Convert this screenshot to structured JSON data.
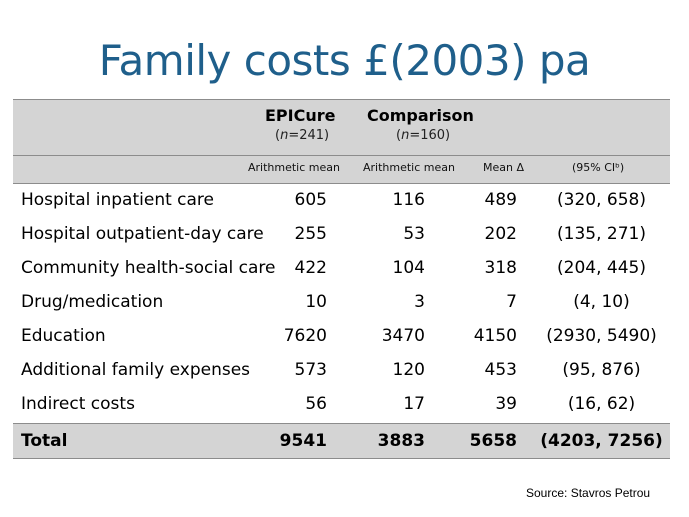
{
  "title": "Family costs £(2003) pa",
  "columns": [
    {
      "name": "EPICure",
      "n_prefix": "(",
      "n_var": "n",
      "n_value": "=241)",
      "measure": "Arithmetic mean"
    },
    {
      "name": "Comparison",
      "n_prefix": "(",
      "n_var": "n",
      "n_value": "=160)",
      "measure": "Arithmetic mean"
    },
    {
      "measure": "Mean Δ"
    },
    {
      "measure": "(95% CIᵇ)"
    }
  ],
  "rows": [
    {
      "label": "Hospital inpatient care",
      "epicure": "605",
      "comparison": "116",
      "mean_delta": "489",
      "ci": "(320, 658)"
    },
    {
      "label": "Hospital outpatient-day care",
      "epicure": "255",
      "comparison": "53",
      "mean_delta": "202",
      "ci": "(135, 271)"
    },
    {
      "label": "Community health-social care",
      "epicure": "422",
      "comparison": "104",
      "mean_delta": "318",
      "ci": "(204, 445)"
    },
    {
      "label": "Drug/medication",
      "epicure": "10",
      "comparison": "3",
      "mean_delta": "7",
      "ci": "(4, 10)"
    },
    {
      "label": "Education",
      "epicure": "7620",
      "comparison": "3470",
      "mean_delta": "4150",
      "ci": "(2930, 5490)"
    },
    {
      "label": "Additional family expenses",
      "epicure": "573",
      "comparison": "120",
      "mean_delta": "453",
      "ci": "(95, 876)"
    },
    {
      "label": "Indirect costs",
      "epicure": "56",
      "comparison": "17",
      "mean_delta": "39",
      "ci": "(16, 62)"
    }
  ],
  "total": {
    "label": "Total",
    "epicure": "9541",
    "comparison": "3883",
    "mean_delta": "5658",
    "ci": "(4203, 7256)"
  },
  "source": "Source: Stavros Petrou",
  "colors": {
    "title": "#1f5f8b",
    "header_band": "#d4d4d4",
    "rule": "#8c8c8c"
  }
}
